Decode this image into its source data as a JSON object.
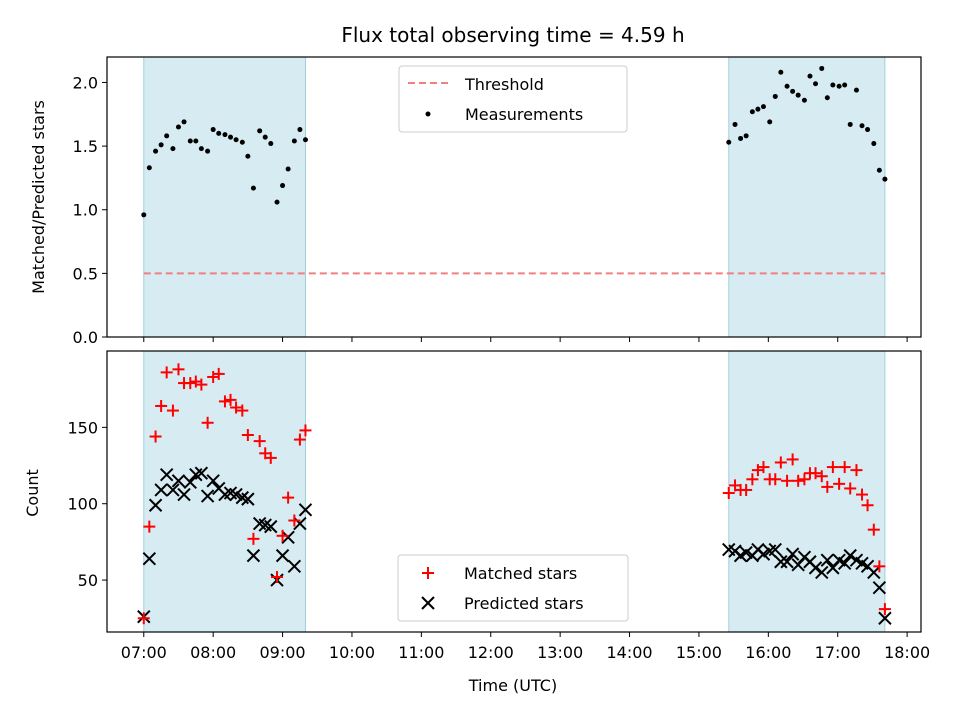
{
  "chart_data": [
    {
      "type": "scatter",
      "title": "Flux total observing time = 4.59 h",
      "xlabel": "",
      "ylabel": "Matched/Predicted stars",
      "ylim": [
        0,
        2.2
      ],
      "yticks": [
        "0.0",
        "0.5",
        "1.0",
        "1.5",
        "2.0"
      ],
      "grid": false,
      "legend_position": "upper-center",
      "shaded_intervals_utc_hours": [
        [
          7.0,
          9.33
        ],
        [
          15.43,
          17.68
        ]
      ],
      "threshold": {
        "name": "Threshold",
        "value": 0.5,
        "x_range": [
          7.0,
          17.68
        ],
        "color": "#f08080"
      },
      "series": [
        {
          "name": "Measurements",
          "color": "#000000",
          "x": [
            7.0,
            7.08,
            7.17,
            7.25,
            7.33,
            7.42,
            7.5,
            7.58,
            7.67,
            7.75,
            7.83,
            7.92,
            8.0,
            8.08,
            8.17,
            8.25,
            8.33,
            8.42,
            8.5,
            8.58,
            8.67,
            8.75,
            8.83,
            8.92,
            9.0,
            9.08,
            9.17,
            9.25,
            9.33,
            15.43,
            15.52,
            15.6,
            15.68,
            15.77,
            15.85,
            15.93,
            16.02,
            16.1,
            16.18,
            16.27,
            16.35,
            16.43,
            16.52,
            16.6,
            16.68,
            16.77,
            16.85,
            16.93,
            17.02,
            17.1,
            17.18,
            17.27,
            17.35,
            17.43,
            17.52,
            17.6,
            17.68
          ],
          "y": [
            0.96,
            1.33,
            1.46,
            1.51,
            1.58,
            1.48,
            1.65,
            1.69,
            1.54,
            1.54,
            1.48,
            1.46,
            1.63,
            1.6,
            1.59,
            1.57,
            1.55,
            1.53,
            1.42,
            1.17,
            1.62,
            1.57,
            1.52,
            1.06,
            1.19,
            1.32,
            1.54,
            1.63,
            1.55,
            1.53,
            1.67,
            1.56,
            1.58,
            1.77,
            1.79,
            1.81,
            1.69,
            1.89,
            2.08,
            1.97,
            1.93,
            1.9,
            1.86,
            2.05,
            1.99,
            2.11,
            1.88,
            1.98,
            1.97,
            1.98,
            1.67,
            1.94,
            1.66,
            1.63,
            1.52,
            1.31,
            1.24
          ]
        }
      ]
    },
    {
      "type": "scatter",
      "title": "",
      "xlabel": "Time (UTC)",
      "ylabel": "Count",
      "ylim": [
        16,
        200
      ],
      "yticks": [
        "50",
        "100",
        "150"
      ],
      "xlim_utc_hours": [
        6.47,
        18.2
      ],
      "xticks": [
        "07:00",
        "08:00",
        "09:00",
        "10:00",
        "11:00",
        "12:00",
        "13:00",
        "14:00",
        "15:00",
        "16:00",
        "17:00",
        "18:00"
      ],
      "grid": false,
      "legend_position": "lower-center",
      "shaded_intervals_utc_hours": [
        [
          7.0,
          9.33
        ],
        [
          15.43,
          17.68
        ]
      ],
      "series": [
        {
          "name": "Matched stars",
          "marker": "+",
          "color": "#ff0000",
          "x": [
            7.0,
            7.08,
            7.17,
            7.25,
            7.33,
            7.42,
            7.5,
            7.58,
            7.67,
            7.75,
            7.83,
            7.92,
            8.0,
            8.08,
            8.17,
            8.25,
            8.33,
            8.42,
            8.5,
            8.58,
            8.67,
            8.75,
            8.83,
            8.92,
            9.0,
            9.08,
            9.17,
            9.25,
            9.33,
            15.43,
            15.52,
            15.6,
            15.68,
            15.77,
            15.85,
            15.93,
            16.02,
            16.1,
            16.18,
            16.27,
            16.35,
            16.43,
            16.52,
            16.6,
            16.68,
            16.77,
            16.85,
            16.93,
            17.02,
            17.1,
            17.18,
            17.27,
            17.35,
            17.43,
            17.52,
            17.6,
            17.68
          ],
          "y": [
            25,
            85,
            144,
            164,
            186,
            161,
            188,
            179,
            179,
            180,
            178,
            153,
            183,
            185,
            167,
            168,
            163,
            161,
            145,
            77,
            141,
            133,
            130,
            52,
            79,
            104,
            89,
            142,
            148,
            107,
            112,
            109,
            109,
            116,
            122,
            124,
            116,
            116,
            127,
            115,
            129,
            115,
            116,
            120,
            120,
            118,
            111,
            124,
            113,
            124,
            110,
            122,
            106,
            99,
            83,
            59,
            31
          ]
        },
        {
          "name": "Predicted stars",
          "marker": "x",
          "color": "#000000",
          "x": [
            7.0,
            7.08,
            7.17,
            7.25,
            7.33,
            7.42,
            7.5,
            7.58,
            7.67,
            7.75,
            7.83,
            7.92,
            8.0,
            8.08,
            8.17,
            8.25,
            8.33,
            8.42,
            8.5,
            8.58,
            8.67,
            8.75,
            8.83,
            8.92,
            9.0,
            9.08,
            9.17,
            9.25,
            9.33,
            15.43,
            15.52,
            15.6,
            15.68,
            15.77,
            15.85,
            15.93,
            16.02,
            16.1,
            16.18,
            16.27,
            16.35,
            16.43,
            16.52,
            16.6,
            16.68,
            16.77,
            16.85,
            16.93,
            17.02,
            17.1,
            17.18,
            17.27,
            17.35,
            17.43,
            17.52,
            17.6,
            17.68
          ],
          "y": [
            26,
            64,
            99,
            109,
            119,
            109,
            115,
            106,
            114,
            119,
            120,
            105,
            115,
            110,
            106,
            107,
            106,
            104,
            103,
            66,
            87,
            86,
            85,
            50,
            66,
            78,
            59,
            87,
            96,
            70,
            69,
            66,
            68,
            66,
            70,
            67,
            69,
            70,
            62,
            62,
            67,
            60,
            65,
            62,
            58,
            55,
            63,
            58,
            63,
            61,
            66,
            63,
            61,
            59,
            55,
            45,
            25
          ]
        }
      ]
    }
  ]
}
